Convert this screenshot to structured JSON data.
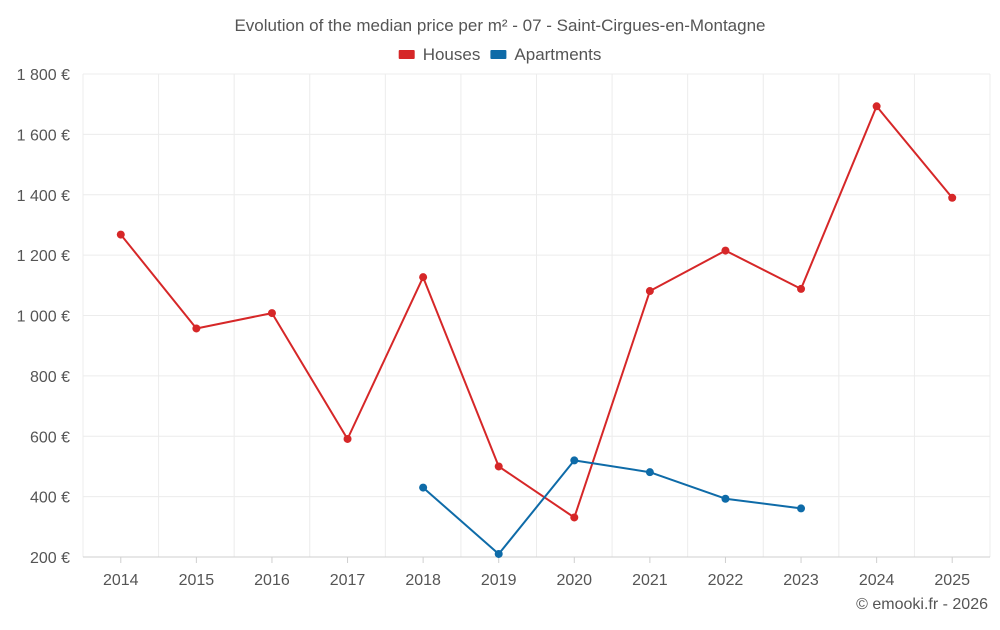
{
  "chart_data": {
    "type": "line",
    "title": "Evolution of the median price per m² - 07 - Saint-Cirgues-en-Montagne",
    "categories": [
      "2014",
      "2015",
      "2016",
      "2017",
      "2018",
      "2019",
      "2020",
      "2021",
      "2022",
      "2023",
      "2024",
      "2025"
    ],
    "series": [
      {
        "name": "Houses",
        "color": "#d62728",
        "values": [
          1268,
          957,
          1008,
          591,
          1127,
          500,
          331,
          1081,
          1215,
          1088,
          1693,
          1390
        ]
      },
      {
        "name": "Apartments",
        "color": "#0e6ba8",
        "values": [
          null,
          null,
          null,
          null,
          430,
          210,
          520,
          481,
          393,
          361,
          null,
          null
        ]
      }
    ],
    "yticks": [
      200,
      400,
      600,
      800,
      1000,
      1200,
      1400,
      1600,
      1800
    ],
    "ytick_labels": [
      "200 €",
      "400 €",
      "600 €",
      "800 €",
      "1 000 €",
      "1 200 €",
      "1 400 €",
      "1 600 €",
      "1 800 €"
    ],
    "ylim": [
      200,
      1800
    ],
    "xlabel": "",
    "ylabel": "",
    "legend_position": "top-center",
    "grid": true
  },
  "credit": "© emooki.fr - 2026"
}
